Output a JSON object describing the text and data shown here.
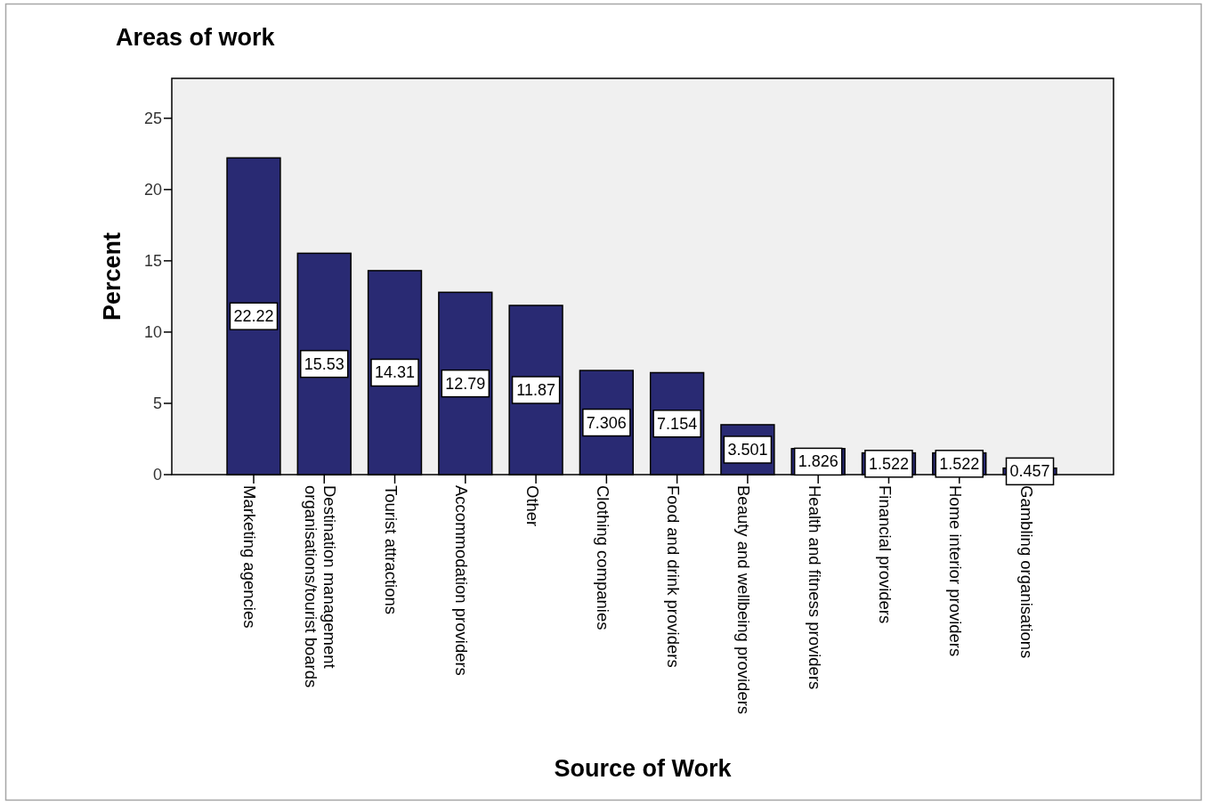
{
  "chart_data": {
    "type": "bar",
    "title": "Areas of work",
    "xlabel": "Source of Work",
    "ylabel": "Percent",
    "categories": [
      "Marketing agencies",
      "Destination management organisations/tourist boards",
      "Tourist attractions",
      "Accommodation providers",
      "Other",
      "Clothing companies",
      "Food and drink providers",
      "Beauty and wellbeing providers",
      "Health and fitness providers",
      "Financial providers",
      "Home interior providers",
      "Gambling organisations"
    ],
    "values": [
      22.22,
      15.53,
      14.31,
      12.79,
      11.87,
      7.306,
      7.154,
      3.501,
      1.826,
      1.522,
      1.522,
      0.457
    ],
    "color": "#292a73",
    "ylim": [
      0,
      27.8
    ],
    "yticks": [
      0,
      5,
      10,
      15,
      20,
      25
    ],
    "data_labels": true
  }
}
